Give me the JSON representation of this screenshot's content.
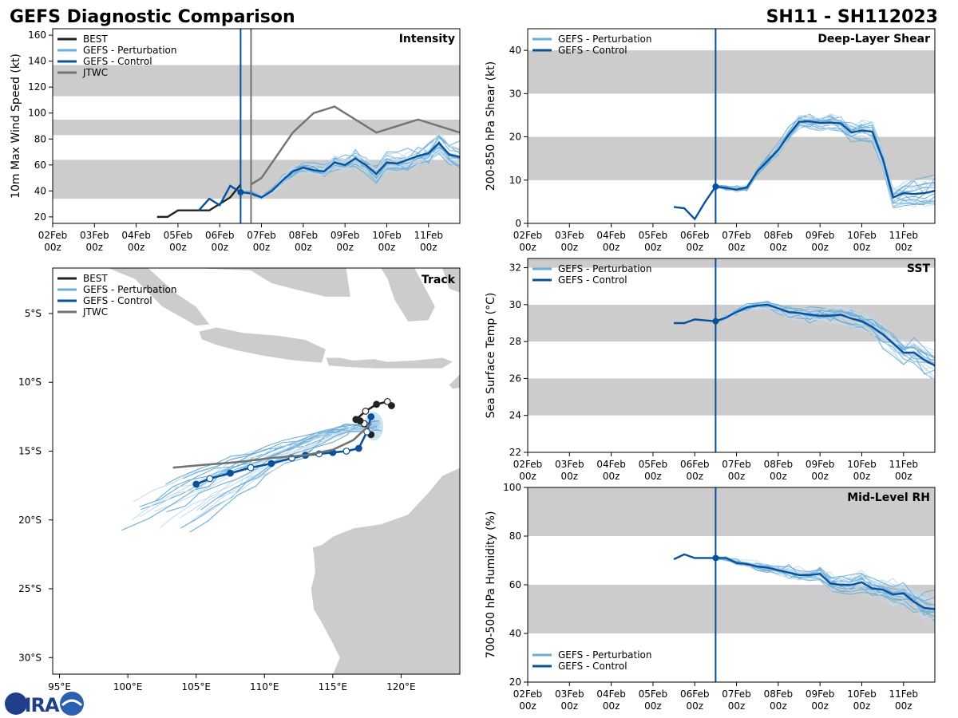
{
  "page": {
    "title_left": "GEFS Diagnostic Comparison",
    "title_right": "SH11 - SH112023",
    "logo_text": "CIRA"
  },
  "time_axis": {
    "labels": [
      "02Feb\n00z",
      "03Feb\n00z",
      "04Feb\n00z",
      "05Feb\n00z",
      "06Feb\n00z",
      "07Feb\n00z",
      "08Feb\n00z",
      "09Feb\n00z",
      "10Feb\n00z",
      "11Feb\n00z"
    ],
    "xmin": 0,
    "xmax": 9.75,
    "analysis_time": 4.5,
    "jtwc_time": 4.75
  },
  "colors": {
    "best": "#222222",
    "perturbation": "#6aaed6",
    "perturbation_light": "#c6dbef",
    "control": "#08519c",
    "jtwc": "#737373",
    "band": "#cccccc",
    "land": "#cccccc",
    "analysis_line": "#08519c"
  },
  "chart_data": [
    {
      "id": "intensity",
      "type": "line",
      "title": "Intensity",
      "ylabel": "10m Max Wind Speed (kt)",
      "ylim": [
        15,
        165
      ],
      "yticks": [
        20,
        40,
        60,
        80,
        100,
        120,
        140,
        160
      ],
      "bands": [
        [
          34,
          64
        ],
        [
          83,
          95
        ],
        [
          113,
          137
        ]
      ],
      "legend": [
        "BEST",
        "GEFS - Perturbation",
        "GEFS - Control",
        "JTWC"
      ],
      "series": [
        {
          "name": "BEST",
          "x": [
            2.5,
            2.75,
            3.0,
            3.25,
            3.5,
            3.75,
            4.0,
            4.25,
            4.5
          ],
          "y": [
            20,
            20,
            25,
            25,
            25,
            25,
            30,
            35,
            45
          ]
        },
        {
          "name": "GEFS - Control",
          "x": [
            3.5,
            3.75,
            4.0,
            4.25,
            4.5,
            4.75,
            5.0,
            5.25,
            5.5,
            5.75,
            6.0,
            6.25,
            6.5,
            6.75,
            7.0,
            7.25,
            7.5,
            7.75,
            8.0,
            8.25,
            8.5,
            8.75,
            9.0,
            9.25,
            9.5,
            9.75
          ],
          "y": [
            25,
            34,
            29,
            44,
            39,
            38,
            35,
            40,
            48,
            55,
            58,
            56,
            55,
            62,
            60,
            65,
            60,
            53,
            62,
            61,
            64,
            67,
            69,
            77,
            68,
            66
          ]
        },
        {
          "name": "JTWC",
          "x": [
            4.75,
            5.0,
            5.75,
            6.25,
            6.75,
            7.75,
            8.75,
            9.75
          ],
          "y": [
            45,
            50,
            85,
            100,
            105,
            85,
            95,
            85
          ]
        }
      ]
    },
    {
      "id": "shear",
      "type": "line",
      "title": "Deep-Layer Shear",
      "ylabel": "200-850 hPa Shear (kt)",
      "ylim": [
        0,
        45
      ],
      "yticks": [
        0,
        10,
        20,
        30,
        40
      ],
      "bands": [
        [
          10,
          20
        ],
        [
          30,
          40
        ]
      ],
      "legend": [
        "GEFS - Perturbation",
        "GEFS - Control"
      ],
      "series": [
        {
          "name": "GEFS - Control",
          "x": [
            3.5,
            3.75,
            4.0,
            4.25,
            4.5,
            4.75,
            5.0,
            5.25,
            5.5,
            5.75,
            6.0,
            6.25,
            6.5,
            6.75,
            7.0,
            7.25,
            7.5,
            7.75,
            8.0,
            8.25,
            8.5,
            8.75,
            9.0,
            9.25,
            9.5,
            9.75
          ],
          "y": [
            3.8,
            3.5,
            1,
            5,
            8.5,
            8.2,
            7.8,
            8.3,
            12,
            14.5,
            17,
            20.5,
            23.5,
            23.6,
            23.2,
            23.3,
            23.1,
            21,
            21.5,
            21.2,
            15,
            6,
            7,
            6.8,
            7,
            7.5
          ]
        }
      ]
    },
    {
      "id": "sst",
      "type": "line",
      "title": "SST",
      "ylabel": "Sea Surface Temp (°C)",
      "ylim": [
        22,
        32.5
      ],
      "yticks": [
        22,
        24,
        26,
        28,
        30,
        32
      ],
      "bands": [
        [
          24,
          26
        ],
        [
          28,
          30
        ],
        [
          32,
          34
        ]
      ],
      "legend": [
        "GEFS - Perturbation",
        "GEFS - Control"
      ],
      "series": [
        {
          "name": "GEFS - Control",
          "x": [
            3.5,
            3.75,
            4.0,
            4.25,
            4.5,
            4.75,
            5.0,
            5.25,
            5.5,
            5.75,
            6.0,
            6.25,
            6.5,
            6.75,
            7.0,
            7.25,
            7.5,
            7.75,
            8.0,
            8.25,
            8.5,
            8.75,
            9.0,
            9.25,
            9.5,
            9.75
          ],
          "y": [
            29.0,
            29.0,
            29.2,
            29.15,
            29.1,
            29.3,
            29.6,
            29.85,
            29.95,
            30.0,
            29.8,
            29.6,
            29.55,
            29.45,
            29.4,
            29.4,
            29.45,
            29.25,
            29.1,
            28.8,
            28.4,
            27.9,
            27.4,
            27.4,
            27.0,
            26.7
          ]
        }
      ]
    },
    {
      "id": "rh",
      "type": "line",
      "title": "Mid-Level RH",
      "ylabel": "700-500 hPa Humidity (%)",
      "ylim": [
        20,
        100
      ],
      "yticks": [
        20,
        40,
        60,
        80,
        100
      ],
      "bands": [
        [
          40,
          60
        ],
        [
          80,
          100
        ]
      ],
      "legend": [
        "GEFS - Perturbation",
        "GEFS - Control"
      ],
      "series": [
        {
          "name": "GEFS - Control",
          "x": [
            3.5,
            3.75,
            4.0,
            4.25,
            4.5,
            4.75,
            5.0,
            5.25,
            5.5,
            5.75,
            6.0,
            6.25,
            6.5,
            6.75,
            7.0,
            7.25,
            7.5,
            7.75,
            8.0,
            8.25,
            8.5,
            8.75,
            9.0,
            9.25,
            9.5,
            9.75
          ],
          "y": [
            70.5,
            72.5,
            71,
            71,
            71,
            71,
            69,
            68.5,
            67.5,
            67,
            66,
            65,
            64,
            64,
            64.5,
            60.5,
            60,
            60,
            61,
            58.5,
            58,
            56,
            56.5,
            53,
            50.5,
            50
          ]
        }
      ]
    },
    {
      "id": "track",
      "type": "scatter",
      "title": "Track",
      "xlabel": "",
      "ylabel": "",
      "xlim": [
        94.5,
        124.3
      ],
      "ylim": [
        -31.2,
        -1.7
      ],
      "xticks": [
        95,
        100,
        105,
        110,
        115,
        120
      ],
      "xtick_labels": [
        "95°E",
        "100°E",
        "105°E",
        "110°E",
        "115°E",
        "120°E"
      ],
      "yticks": [
        -5,
        -10,
        -15,
        -20,
        -25,
        -30
      ],
      "ytick_labels": [
        "5°S",
        "10°S",
        "15°S",
        "20°S",
        "25°S",
        "30°S"
      ],
      "legend": [
        "BEST",
        "GEFS - Perturbation",
        "GEFS - Control",
        "JTWC"
      ],
      "series": [
        {
          "name": "BEST",
          "lon": [
            117.8,
            117.3,
            117.0,
            116.7
          ],
          "lat": [
            -13.8,
            -13.0,
            -12.8,
            -12.7
          ]
        },
        {
          "name": "BEST upper",
          "lon": [
            116.7,
            117.4,
            118.2,
            119.0,
            119.3
          ],
          "lat": [
            -12.7,
            -12.1,
            -11.6,
            -11.4,
            -11.7
          ]
        },
        {
          "name": "GEFS - Control",
          "lon": [
            117.8,
            117.5,
            116.9,
            116.0,
            115.0,
            114.0,
            113.0,
            112.0,
            110.5,
            109.0,
            107.5,
            106.0,
            105.0
          ],
          "lat": [
            -12.5,
            -13.6,
            -14.8,
            -15.0,
            -15.1,
            -15.2,
            -15.3,
            -15.5,
            -15.9,
            -16.2,
            -16.6,
            -17.0,
            -17.4
          ]
        },
        {
          "name": "JTWC",
          "lon": [
            117.8,
            116.5,
            115.0,
            113.0,
            110.5,
            108.0,
            105.5,
            103.3
          ],
          "lat": [
            -13.0,
            -14.2,
            -14.9,
            -15.3,
            -15.5,
            -15.8,
            -16.0,
            -16.2
          ]
        }
      ]
    }
  ]
}
